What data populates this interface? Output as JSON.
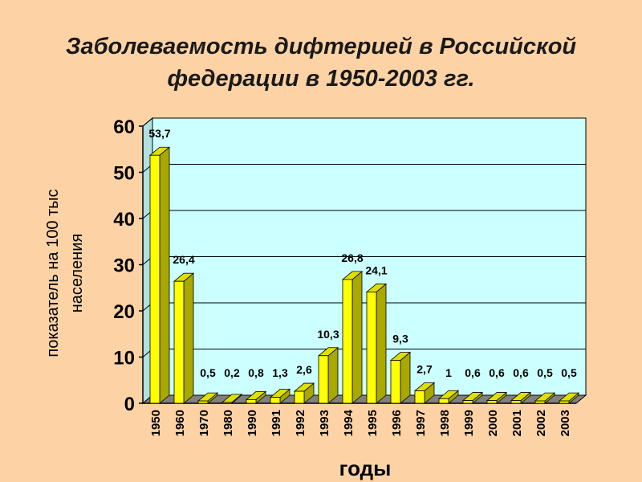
{
  "title_lines": [
    "Заболеваемость дифтерией в Российской",
    "федерации в 1950-2003 гг."
  ],
  "chart_data": {
    "type": "bar",
    "title": "Заболеваемость дифтерией в Российской федерации в 1950-2003 гг.",
    "categories": [
      "1950",
      "1960",
      "1970",
      "1980",
      "1990",
      "1991",
      "1992",
      "1993",
      "1994",
      "1995",
      "1996",
      "1997",
      "1998",
      "1999",
      "2000",
      "2001",
      "2002",
      "2003"
    ],
    "values": [
      53.7,
      26.4,
      0.5,
      0.2,
      0.8,
      1.3,
      2.6,
      10.3,
      26.8,
      24.1,
      9.3,
      2.7,
      1,
      0.6,
      0.6,
      0.6,
      0.5,
      0.5
    ],
    "value_labels": [
      "53,7",
      "26,4",
      "0,5",
      "0,2",
      "0,8",
      "1,3",
      "2,6",
      "10,3",
      "26,8",
      "24,1",
      "9,3",
      "2,7",
      "1",
      "0,6",
      "0,6",
      "0,6",
      "0,5",
      "0,5"
    ],
    "xlabel": "годы",
    "ylabel_lines": [
      "показатель на 100 тыс",
      "населения"
    ],
    "ylim": [
      0,
      60
    ],
    "yticks": [
      0,
      10,
      20,
      30,
      40,
      50,
      60
    ],
    "grid": true,
    "legend": "none",
    "colors": {
      "bar_front": "#ffff00",
      "bar_side": "#a8a800",
      "bar_top": "#e0e000",
      "plot_back": "#ccffff",
      "plot_floor": "#808080",
      "page_background": "#fdd3a6"
    }
  }
}
